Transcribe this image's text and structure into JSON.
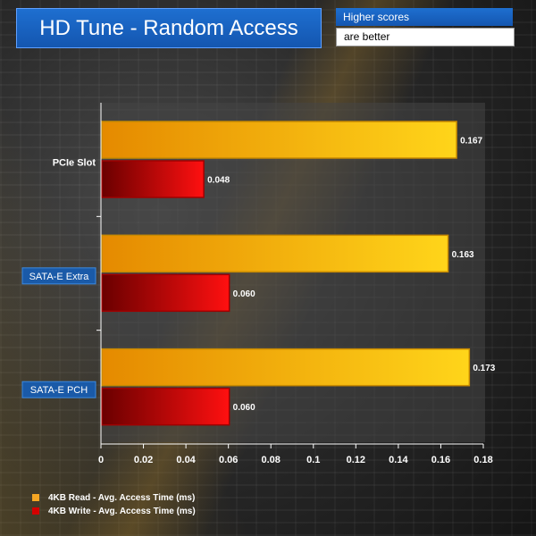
{
  "title_box": {
    "title": "HD Tune - Random Access"
  },
  "note": {
    "line1": "Higher scores",
    "line2": "are better"
  },
  "chart_data": {
    "type": "bar",
    "orientation": "horizontal",
    "title": "HD Tune - Random Access",
    "categories": [
      "PCIe Slot",
      "SATA-E Extra",
      "SATA-E PCH"
    ],
    "series": [
      {
        "name": "4KB Read - Avg. Access Time (ms)",
        "values": [
          0.167,
          0.163,
          0.173
        ],
        "color": "#f5a623"
      },
      {
        "name": "4KB Write - Avg. Access Time (ms)",
        "values": [
          0.048,
          0.06,
          0.06
        ],
        "color": "#d40000"
      }
    ],
    "value_labels": [
      [
        "0.167",
        "0.163",
        "0.173"
      ],
      [
        "0.048",
        "0.060",
        "0.060"
      ]
    ],
    "xlim": [
      0,
      0.18
    ],
    "x_ticks": [
      "0",
      "0.02",
      "0.04",
      "0.06",
      "0.08",
      "0.1",
      "0.12",
      "0.14",
      "0.16",
      "0.18"
    ],
    "grid": false,
    "legend_position": "bottom-left"
  }
}
